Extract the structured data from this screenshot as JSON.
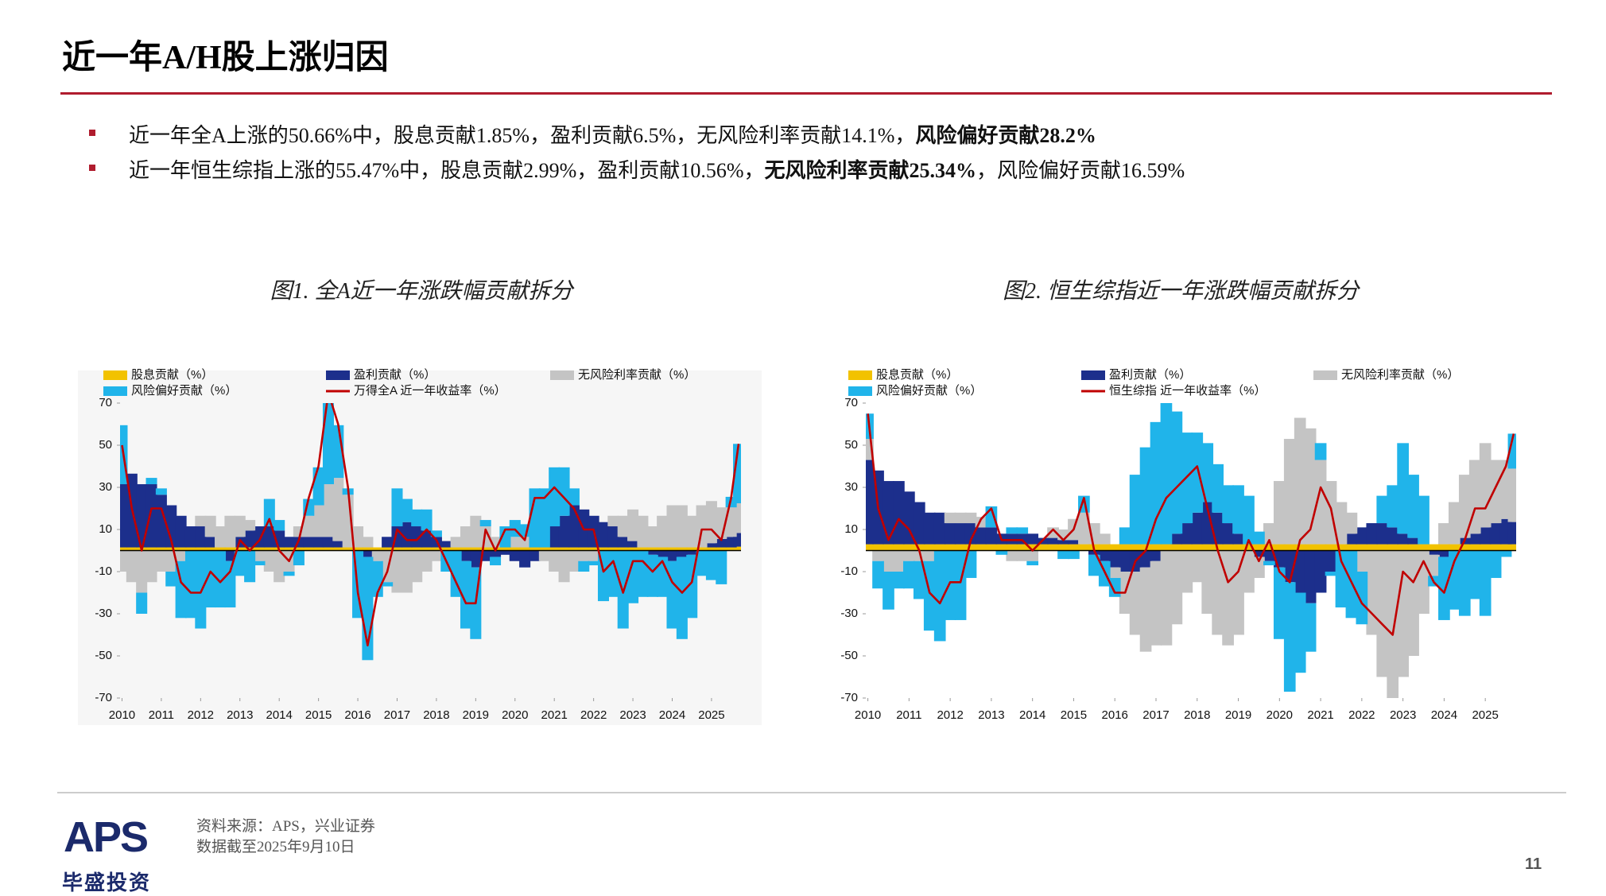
{
  "header": {
    "title": "近一年A/H股上涨归因"
  },
  "bullets": [
    [
      {
        "text": "近一年全A上涨的50.66%中，股息贡献1.85%，盈利贡献6.5%，无风险利率贡献14.1%，",
        "bold": false
      },
      {
        "text": "风险偏好贡献28.2%",
        "bold": true
      }
    ],
    [
      {
        "text": "近一年恒生综指上涨的55.47%中，股息贡献2.99%，盈利贡献10.56%，",
        "bold": false
      },
      {
        "text": "无风险利率贡献25.34%",
        "bold": true
      },
      {
        "text": "，风险偏好贡献16.59%",
        "bold": false
      }
    ]
  ],
  "chart_data": [
    {
      "type": "bar",
      "title": "图1. 全A近一年涨跌幅贡献拆分",
      "x": [
        2010,
        2010.25,
        2010.5,
        2010.75,
        2011,
        2011.25,
        2011.5,
        2011.75,
        2012,
        2012.25,
        2012.5,
        2012.75,
        2013,
        2013.25,
        2013.5,
        2013.75,
        2014,
        2014.25,
        2014.5,
        2014.75,
        2015,
        2015.25,
        2015.5,
        2015.75,
        2016,
        2016.25,
        2016.5,
        2016.75,
        2017,
        2017.25,
        2017.5,
        2017.75,
        2018,
        2018.25,
        2018.5,
        2018.75,
        2019,
        2019.25,
        2019.5,
        2019.75,
        2020,
        2020.25,
        2020.5,
        2020.75,
        2021,
        2021.25,
        2021.5,
        2021.75,
        2022,
        2022.25,
        2022.5,
        2022.75,
        2023,
        2023.25,
        2023.5,
        2023.75,
        2024,
        2024.25,
        2024.5,
        2024.75,
        2025,
        2025.25,
        2025.5,
        2025.69
      ],
      "xlim": [
        2009.95,
        2025.75
      ],
      "xticks": [
        2010,
        2011,
        2012,
        2013,
        2014,
        2015,
        2016,
        2017,
        2018,
        2019,
        2020,
        2021,
        2022,
        2023,
        2024,
        2025
      ],
      "ylim": [
        -70,
        70
      ],
      "yticks": [
        -70,
        -50,
        -30,
        -10,
        10,
        30,
        50,
        70
      ],
      "series": [
        {
          "name": "股息贡献（%）",
          "type": "bar",
          "color": "#f2c200",
          "values": [
            1.5,
            1.5,
            1.5,
            1.5,
            1.5,
            1.5,
            1.5,
            1.5,
            1.5,
            1.5,
            1.5,
            1.5,
            1.5,
            1.5,
            1.5,
            1.5,
            1.5,
            1.5,
            1.5,
            1.5,
            1.5,
            1.5,
            1.5,
            1.5,
            1.5,
            1.5,
            1.5,
            1.5,
            1.5,
            1.5,
            1.5,
            1.5,
            1.5,
            1.5,
            1.5,
            1.5,
            1.5,
            1.5,
            1.5,
            1.5,
            1.5,
            1.5,
            1.5,
            1.5,
            1.5,
            1.5,
            1.5,
            1.5,
            1.5,
            1.5,
            1.5,
            1.5,
            1.5,
            1.5,
            1.5,
            1.5,
            1.5,
            1.5,
            1.5,
            1.5,
            1.5,
            1.5,
            1.5,
            1.85
          ]
        },
        {
          "name": "盈利贡献（%）",
          "type": "bar",
          "color": "#1c2f8c",
          "values": [
            30,
            35,
            30,
            30,
            25,
            20,
            15,
            10,
            10,
            5,
            0,
            -5,
            5,
            8,
            10,
            10,
            8,
            5,
            5,
            5,
            5,
            5,
            3,
            0,
            0,
            -3,
            0,
            5,
            10,
            12,
            10,
            8,
            5,
            3,
            0,
            -5,
            -8,
            -5,
            -3,
            -2,
            -5,
            -8,
            -5,
            0,
            10,
            15,
            20,
            18,
            15,
            12,
            10,
            5,
            3,
            0,
            -2,
            -3,
            -5,
            -3,
            -2,
            0,
            2,
            4,
            5,
            6.5
          ]
        },
        {
          "name": "无风险利率贡献（%）",
          "type": "bar",
          "color": "#c4c4c4",
          "values": [
            -10,
            -15,
            -20,
            -15,
            -10,
            -10,
            -5,
            0,
            5,
            10,
            10,
            15,
            10,
            5,
            -5,
            -10,
            -15,
            -10,
            5,
            10,
            15,
            25,
            30,
            25,
            10,
            5,
            -5,
            -15,
            -20,
            -20,
            -15,
            -10,
            -5,
            0,
            5,
            10,
            15,
            10,
            5,
            0,
            5,
            5,
            0,
            -5,
            -10,
            -15,
            -10,
            -5,
            -5,
            0,
            5,
            10,
            15,
            15,
            10,
            15,
            20,
            20,
            15,
            20,
            20,
            15,
            14,
            14.1
          ]
        },
        {
          "name": "风险偏好贡献（%）",
          "type": "bar",
          "color": "#20b4ea",
          "values": [
            28,
            0,
            -10,
            3,
            3,
            -7,
            -27,
            -32,
            -37,
            -27,
            -27,
            -22,
            -12,
            -15,
            -2,
            13,
            5,
            -2,
            -7,
            8,
            18,
            43,
            25,
            3,
            -32,
            -49,
            -17,
            -2,
            18,
            11,
            8,
            10,
            3,
            -10,
            -22,
            -32,
            -34,
            3,
            -4,
            10,
            8,
            6,
            28,
            28,
            28,
            23,
            8,
            -5,
            -2,
            -24,
            -22,
            -37,
            -25,
            -22,
            -20,
            -19,
            -32,
            -39,
            -30,
            -12,
            -14,
            -16,
            5,
            28.2
          ]
        },
        {
          "name": "万得全A 近一年收益率（%）",
          "type": "line",
          "color": "#c00000",
          "values": [
            50,
            20,
            0,
            20,
            20,
            5,
            -15,
            -20,
            -20,
            -10,
            -15,
            -10,
            5,
            0,
            5,
            15,
            0,
            -5,
            5,
            25,
            40,
            75,
            60,
            30,
            -20,
            -45,
            -20,
            -10,
            10,
            5,
            5,
            10,
            5,
            -5,
            -15,
            -25,
            -25,
            10,
            0,
            10,
            10,
            5,
            25,
            25,
            30,
            25,
            20,
            10,
            10,
            -10,
            -5,
            -20,
            -5,
            -5,
            -10,
            -5,
            -15,
            -20,
            -15,
            10,
            10,
            5,
            25,
            50.66
          ]
        }
      ]
    },
    {
      "type": "bar",
      "title": "图2. 恒生综指近一年涨跌幅贡献拆分",
      "x": [
        2010,
        2010.25,
        2010.5,
        2010.75,
        2011,
        2011.25,
        2011.5,
        2011.75,
        2012,
        2012.25,
        2012.5,
        2012.75,
        2013,
        2013.25,
        2013.5,
        2013.75,
        2014,
        2014.25,
        2014.5,
        2014.75,
        2015,
        2015.25,
        2015.5,
        2015.75,
        2016,
        2016.25,
        2016.5,
        2016.75,
        2017,
        2017.25,
        2017.5,
        2017.75,
        2018,
        2018.25,
        2018.5,
        2018.75,
        2019,
        2019.25,
        2019.5,
        2019.75,
        2020,
        2020.25,
        2020.5,
        2020.75,
        2021,
        2021.25,
        2021.5,
        2021.75,
        2022,
        2022.25,
        2022.5,
        2022.75,
        2023,
        2023.25,
        2023.5,
        2023.75,
        2024,
        2024.25,
        2024.5,
        2024.75,
        2025,
        2025.25,
        2025.5,
        2025.69
      ],
      "xlim": [
        2009.95,
        2025.75
      ],
      "xticks": [
        2010,
        2011,
        2012,
        2013,
        2014,
        2015,
        2016,
        2017,
        2018,
        2019,
        2020,
        2021,
        2022,
        2023,
        2024,
        2025
      ],
      "ylim": [
        -70,
        70
      ],
      "yticks": [
        -70,
        -50,
        -30,
        -10,
        10,
        30,
        50,
        70
      ],
      "series": [
        {
          "name": "股息贡献（%）",
          "type": "bar",
          "color": "#f2c200",
          "values": [
            3,
            3,
            3,
            3,
            3,
            3,
            3,
            3,
            3,
            3,
            3,
            3,
            3,
            3,
            3,
            3,
            3,
            3,
            3,
            3,
            3,
            3,
            3,
            3,
            3,
            3,
            3,
            3,
            3,
            3,
            3,
            3,
            3,
            3,
            3,
            3,
            3,
            3,
            3,
            3,
            3,
            3,
            3,
            3,
            3,
            3,
            3,
            3,
            3,
            3,
            3,
            3,
            3,
            3,
            3,
            3,
            3,
            3,
            3,
            3,
            3,
            3,
            3,
            2.99
          ]
        },
        {
          "name": "盈利贡献（%）",
          "type": "bar",
          "color": "#1c2f8c",
          "values": [
            40,
            35,
            30,
            30,
            25,
            20,
            15,
            15,
            10,
            10,
            10,
            8,
            8,
            5,
            5,
            5,
            5,
            3,
            3,
            2,
            2,
            0,
            -2,
            -5,
            -8,
            -10,
            -10,
            -8,
            -5,
            0,
            5,
            10,
            15,
            20,
            15,
            10,
            5,
            0,
            -3,
            -5,
            -8,
            -15,
            -20,
            -25,
            -20,
            -10,
            0,
            5,
            8,
            10,
            10,
            8,
            5,
            3,
            0,
            -2,
            -3,
            0,
            3,
            5,
            8,
            10,
            12,
            10.56
          ]
        },
        {
          "name": "无风险利率贡献（%）",
          "type": "bar",
          "color": "#c4c4c4",
          "values": [
            10,
            -5,
            -10,
            -10,
            -5,
            -5,
            -5,
            0,
            5,
            5,
            5,
            5,
            0,
            0,
            -5,
            -5,
            -5,
            0,
            5,
            5,
            10,
            15,
            10,
            5,
            -5,
            -20,
            -30,
            -40,
            -40,
            -45,
            -35,
            -20,
            -15,
            -30,
            -40,
            -45,
            -40,
            -20,
            -10,
            10,
            30,
            50,
            60,
            55,
            40,
            30,
            20,
            10,
            -10,
            -40,
            -60,
            -70,
            -60,
            -50,
            -30,
            -10,
            10,
            20,
            30,
            35,
            40,
            30,
            28,
            25.34
          ]
        },
        {
          "name": "风险偏好贡献（%）",
          "type": "bar",
          "color": "#20b4ea",
          "values": [
            12,
            -13,
            -18,
            -8,
            -13,
            -18,
            -33,
            -43,
            -33,
            -33,
            -13,
            0,
            10,
            -2,
            3,
            3,
            -2,
            0,
            0,
            -4,
            -4,
            8,
            -10,
            -12,
            -9,
            8,
            33,
            46,
            58,
            68,
            58,
            43,
            38,
            28,
            23,
            18,
            23,
            23,
            6,
            -2,
            -34,
            -52,
            -38,
            -23,
            8,
            -2,
            -27,
            -32,
            -25,
            0,
            13,
            20,
            43,
            30,
            23,
            -5,
            -30,
            -28,
            -31,
            -23,
            -31,
            -13,
            -3,
            16.59
          ]
        },
        {
          "name": "恒生综指 近一年收益率（%）",
          "type": "line",
          "color": "#c00000",
          "values": [
            65,
            20,
            5,
            15,
            10,
            0,
            -20,
            -25,
            -15,
            -15,
            5,
            15,
            20,
            5,
            5,
            5,
            0,
            5,
            10,
            5,
            10,
            25,
            0,
            -10,
            -20,
            -20,
            -5,
            0,
            15,
            25,
            30,
            35,
            40,
            20,
            0,
            -15,
            -10,
            5,
            -5,
            5,
            -10,
            -15,
            5,
            10,
            30,
            20,
            -5,
            -15,
            -25,
            -30,
            -35,
            -40,
            -10,
            -15,
            -5,
            -15,
            -20,
            -5,
            5,
            20,
            20,
            30,
            40,
            55.47
          ]
        }
      ]
    }
  ],
  "footer": {
    "source": "资料来源：APS，兴业证券",
    "date": "数据截至2025年9月10日",
    "logo": "APS",
    "logo_cn": "毕盛投资",
    "page": "11"
  }
}
